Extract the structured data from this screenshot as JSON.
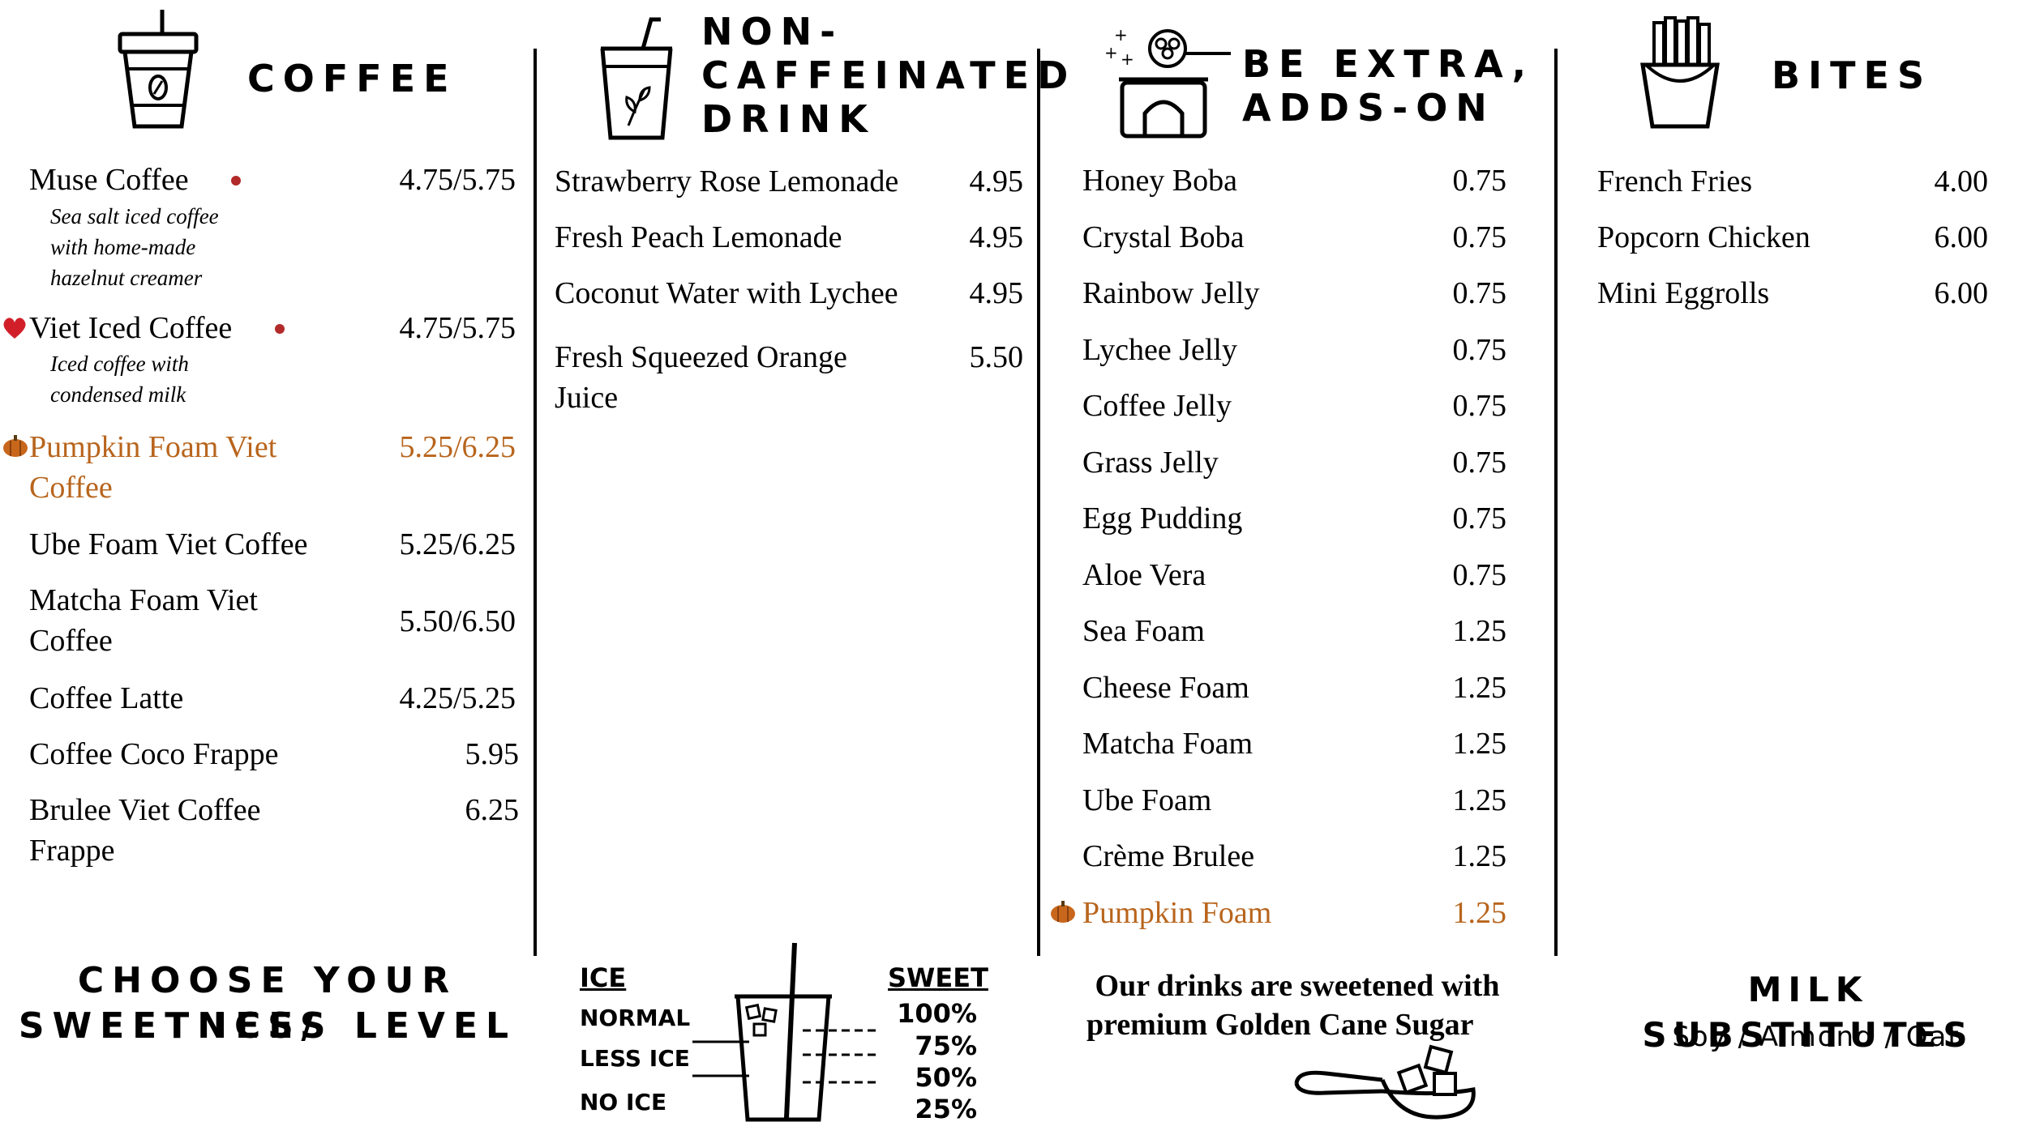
{
  "colors": {
    "orange": "#b8651d",
    "dot": "#b22a2a",
    "heart": "#d11f2a"
  },
  "coffee": {
    "title": "COFFEE",
    "icon": "iced-coffee-cup-icon",
    "items": [
      {
        "name": "Muse Coffee",
        "price": "4.75/5.75",
        "desc": [
          "Sea salt iced coffee",
          "with home-made",
          "hazelnut creamer"
        ]
      },
      {
        "name": "Viet Iced Coffee",
        "price": "4.75/5.75",
        "desc": [
          "Iced coffee with",
          "condensed milk"
        ]
      },
      {
        "name_l1": "Pumpkin Foam Viet",
        "name_l2": "Coffee",
        "price": "5.25/6.25"
      },
      {
        "name": "Ube Foam Viet Coffee",
        "price": "5.25/6.25"
      },
      {
        "name_l1": "Matcha Foam Viet",
        "name_l2": "Coffee",
        "price": "5.50/6.50"
      },
      {
        "name": "Coffee Latte",
        "price": "4.25/5.25"
      },
      {
        "name": "Coffee Coco Frappe",
        "price": "5.95"
      },
      {
        "name_l1": "Brulee Viet Coffee",
        "name_l2": "Frappe",
        "price": "6.25"
      }
    ]
  },
  "noncaf": {
    "title_l1": "NON-",
    "title_l2": "CAFFEINATED",
    "title_l3": "DRINK",
    "icon": "herbal-drink-cup-icon",
    "items": [
      {
        "name": "Strawberry Rose Lemonade",
        "price": "4.95"
      },
      {
        "name": "Fresh Peach Lemonade",
        "price": "4.95"
      },
      {
        "name": "Coconut Water with Lychee",
        "price": "4.95"
      },
      {
        "name_l1": "Fresh Squeezed Orange",
        "name_l2": "Juice",
        "price": "5.50"
      }
    ]
  },
  "addons": {
    "title_l1": "BE EXTRA,",
    "title_l2": "ADDS-ON",
    "icon": "toppings-jar-icon",
    "items": [
      {
        "name": "Honey Boba",
        "price": "0.75"
      },
      {
        "name": "Crystal Boba",
        "price": "0.75"
      },
      {
        "name": "Rainbow Jelly",
        "price": "0.75"
      },
      {
        "name": "Lychee Jelly",
        "price": "0.75"
      },
      {
        "name": "Coffee Jelly",
        "price": "0.75"
      },
      {
        "name": "Grass Jelly",
        "price": "0.75"
      },
      {
        "name": "Egg Pudding",
        "price": "0.75"
      },
      {
        "name": "Aloe Vera",
        "price": "0.75"
      },
      {
        "name": "Sea Foam",
        "price": "1.25"
      },
      {
        "name": "Cheese Foam",
        "price": "1.25"
      },
      {
        "name": "Matcha Foam",
        "price": "1.25"
      },
      {
        "name": "Ube Foam",
        "price": "1.25"
      },
      {
        "name": "Crème Brulee",
        "price": "1.25"
      },
      {
        "name": "Pumpkin Foam",
        "price": "1.25"
      }
    ]
  },
  "bites": {
    "title": "BITES",
    "icon": "french-fries-icon",
    "items": [
      {
        "name": "French Fries",
        "price": "4.00"
      },
      {
        "name": "Popcorn Chicken",
        "price": "6.00"
      },
      {
        "name": "Mini Eggrolls",
        "price": "6.00"
      }
    ]
  },
  "footer": {
    "choose_l1": "CHOOSE YOUR ICE/",
    "choose_l2": "SWEETNESS LEVEL",
    "ice_header": "ICE",
    "ice_levels": [
      "NORMAL",
      "LESS ICE",
      "NO ICE"
    ],
    "sweet_header": "SWEET",
    "sweet_levels": [
      "100%",
      "75%",
      "50%",
      "25%"
    ],
    "sugar_l1": "Our drinks are sweetened with",
    "sugar_l2": "premium Golden Cane Sugar",
    "milk_title": "MILK SUBSTITUTES",
    "milk_options": "Soy / Almond / Oat"
  }
}
